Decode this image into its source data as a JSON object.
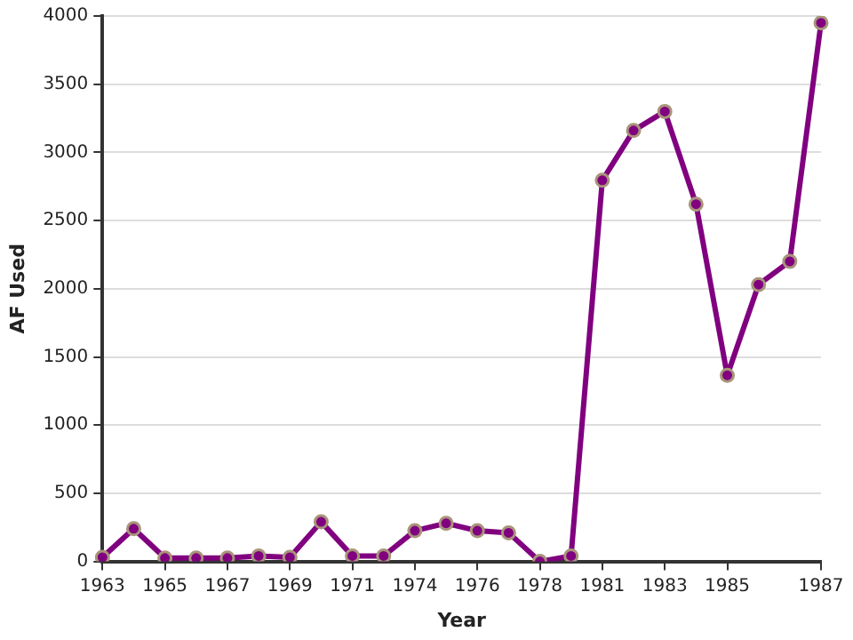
{
  "chart_data": {
    "type": "line",
    "xlabel": "Year",
    "ylabel": "AF Used",
    "categories": [
      "1963",
      null,
      "1965",
      null,
      "1967",
      null,
      "1969",
      null,
      "1971",
      null,
      "1974",
      null,
      "1976",
      null,
      "1978",
      null,
      "1981",
      null,
      "1983",
      null,
      "1985",
      null,
      null,
      "1987"
    ],
    "series": [
      {
        "color": "#800080",
        "values": [
          30,
          240,
          25,
          25,
          25,
          40,
          30,
          290,
          40,
          40,
          225,
          280,
          225,
          210,
          0,
          40,
          2795,
          3160,
          3300,
          2620,
          1365,
          2030,
          2200,
          3950
        ]
      }
    ],
    "ylim": [
      0,
      4000
    ],
    "yticks": [
      0,
      500,
      1000,
      1500,
      2000,
      2500,
      3000,
      3500,
      4000
    ],
    "grid": "y",
    "legend": false,
    "marker": "circle",
    "line_style": "solid"
  }
}
